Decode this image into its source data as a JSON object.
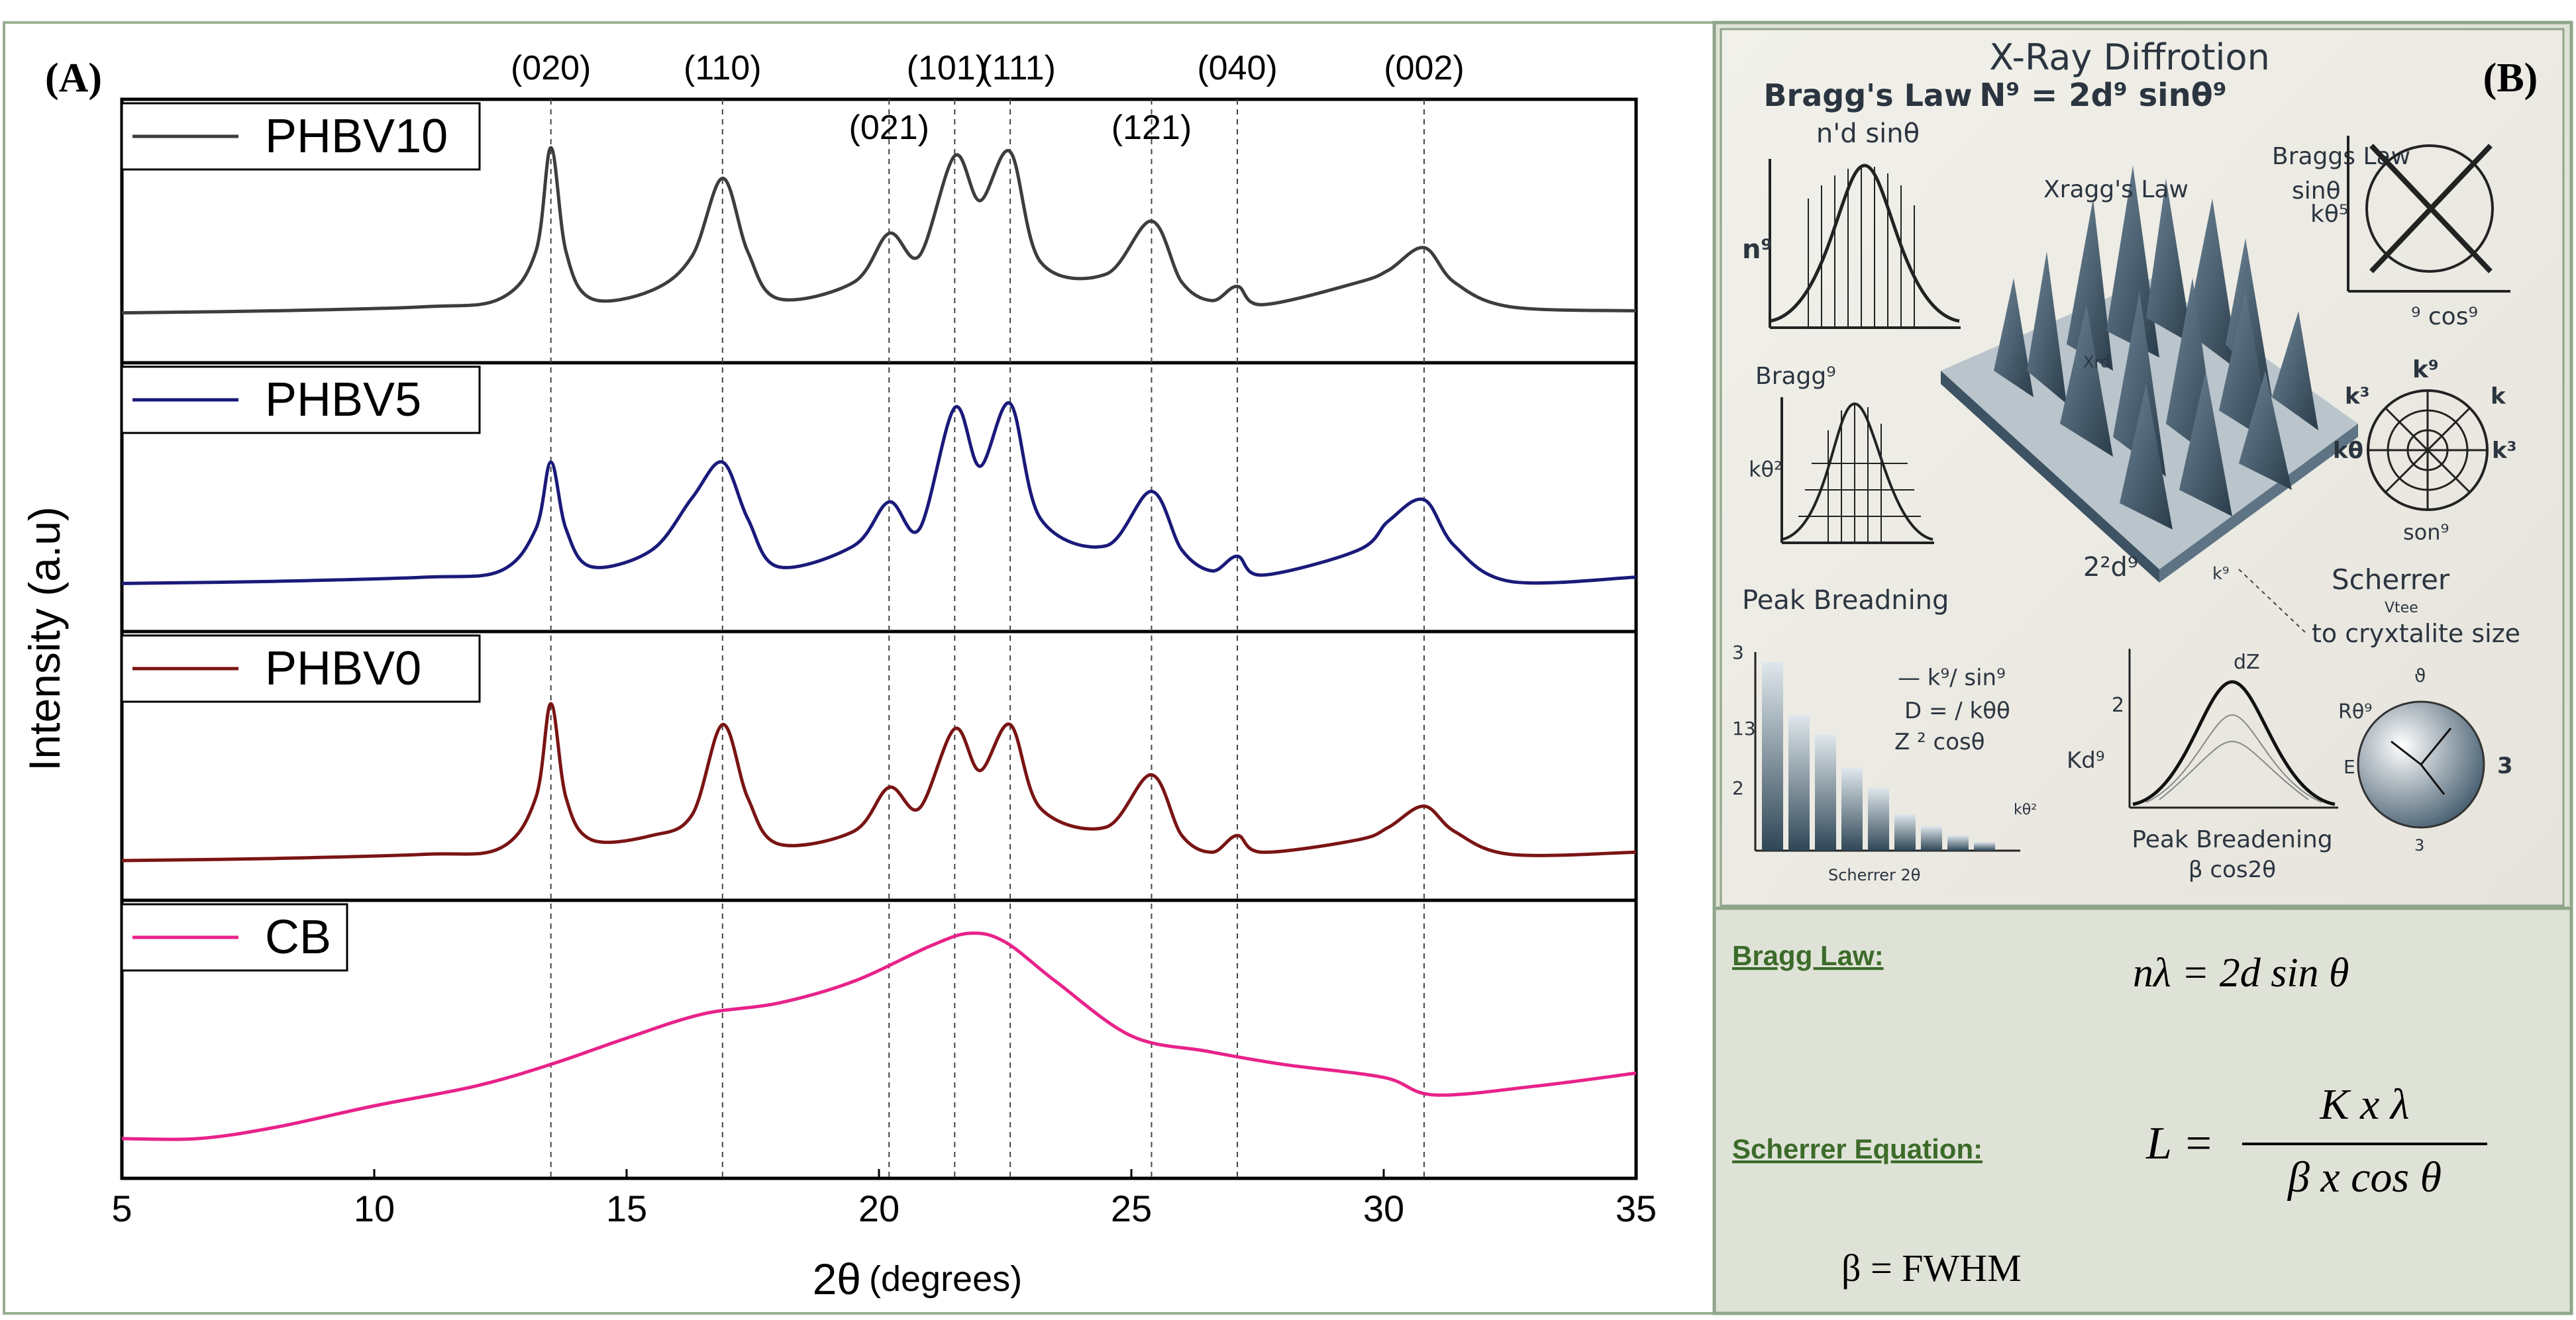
{
  "panel_a_label": "(A)",
  "panel_b_label": "(B)",
  "chart_data": {
    "type": "line",
    "title": "",
    "xlabel_main": "2θ",
    "xlabel_unit": "(degrees)",
    "ylabel": "Intensity (a.u)",
    "xlim": [
      5,
      35
    ],
    "x_ticks": [
      5,
      10,
      15,
      20,
      25,
      30,
      35
    ],
    "peak_labels": [
      {
        "label": "(020)",
        "x": 13.5
      },
      {
        "label": "(110)",
        "x": 16.9
      },
      {
        "label": "(021)",
        "x": 20.2
      },
      {
        "label": "(101)",
        "x": 21.5
      },
      {
        "label": "(111)",
        "x": 22.6
      },
      {
        "label": "(121)",
        "x": 25.4
      },
      {
        "label": "(040)",
        "x": 27.1
      },
      {
        "label": "(002)",
        "x": 30.8
      }
    ],
    "series": [
      {
        "name": "PHBV10",
        "color": "#3d3d3d",
        "baseline": 0.05,
        "points": [
          [
            5,
            0.05
          ],
          [
            8,
            0.06
          ],
          [
            11,
            0.08
          ],
          [
            12.5,
            0.12
          ],
          [
            13.2,
            0.35
          ],
          [
            13.5,
            0.86
          ],
          [
            13.8,
            0.35
          ],
          [
            14.3,
            0.12
          ],
          [
            15.5,
            0.16
          ],
          [
            16.3,
            0.33
          ],
          [
            16.9,
            0.71
          ],
          [
            17.4,
            0.35
          ],
          [
            18,
            0.12
          ],
          [
            19.5,
            0.2
          ],
          [
            20.2,
            0.44
          ],
          [
            20.8,
            0.33
          ],
          [
            21.5,
            0.82
          ],
          [
            22.0,
            0.6
          ],
          [
            22.6,
            0.84
          ],
          [
            23.2,
            0.3
          ],
          [
            24.5,
            0.24
          ],
          [
            25.4,
            0.5
          ],
          [
            26,
            0.2
          ],
          [
            26.6,
            0.11
          ],
          [
            27.1,
            0.18
          ],
          [
            27.6,
            0.09
          ],
          [
            29.5,
            0.2
          ],
          [
            30.1,
            0.26
          ],
          [
            30.8,
            0.37
          ],
          [
            31.4,
            0.2
          ],
          [
            32.5,
            0.08
          ],
          [
            35,
            0.06
          ]
        ]
      },
      {
        "name": "PHBV5",
        "color": "#1a1a7a",
        "baseline": 0.04,
        "points": [
          [
            5,
            0.04
          ],
          [
            8,
            0.05
          ],
          [
            11,
            0.07
          ],
          [
            12.5,
            0.1
          ],
          [
            13.2,
            0.3
          ],
          [
            13.5,
            0.62
          ],
          [
            13.8,
            0.3
          ],
          [
            14.3,
            0.12
          ],
          [
            15.5,
            0.2
          ],
          [
            16.3,
            0.45
          ],
          [
            16.9,
            0.62
          ],
          [
            17.4,
            0.35
          ],
          [
            18,
            0.12
          ],
          [
            19.5,
            0.22
          ],
          [
            20.2,
            0.43
          ],
          [
            20.8,
            0.3
          ],
          [
            21.5,
            0.88
          ],
          [
            22.0,
            0.6
          ],
          [
            22.6,
            0.9
          ],
          [
            23.2,
            0.35
          ],
          [
            24.5,
            0.22
          ],
          [
            25.4,
            0.48
          ],
          [
            26,
            0.2
          ],
          [
            26.6,
            0.1
          ],
          [
            27.1,
            0.17
          ],
          [
            27.6,
            0.08
          ],
          [
            29.5,
            0.2
          ],
          [
            30.1,
            0.34
          ],
          [
            30.8,
            0.44
          ],
          [
            31.4,
            0.22
          ],
          [
            32.5,
            0.05
          ],
          [
            35,
            0.07
          ]
        ]
      },
      {
        "name": "PHBV0",
        "color": "#7a1414",
        "baseline": 0.0,
        "points": [
          [
            5,
            0.0
          ],
          [
            8,
            0.01
          ],
          [
            11,
            0.03
          ],
          [
            12.5,
            0.06
          ],
          [
            13.2,
            0.3
          ],
          [
            13.5,
            0.75
          ],
          [
            13.8,
            0.3
          ],
          [
            14.3,
            0.1
          ],
          [
            15.5,
            0.12
          ],
          [
            16.3,
            0.22
          ],
          [
            16.9,
            0.65
          ],
          [
            17.4,
            0.3
          ],
          [
            18,
            0.08
          ],
          [
            19.5,
            0.14
          ],
          [
            20.2,
            0.35
          ],
          [
            20.8,
            0.25
          ],
          [
            21.5,
            0.63
          ],
          [
            22.0,
            0.43
          ],
          [
            22.6,
            0.65
          ],
          [
            23.2,
            0.25
          ],
          [
            24.5,
            0.16
          ],
          [
            25.4,
            0.41
          ],
          [
            26,
            0.12
          ],
          [
            26.6,
            0.04
          ],
          [
            27.1,
            0.12
          ],
          [
            27.6,
            0.04
          ],
          [
            29.5,
            0.1
          ],
          [
            30.1,
            0.16
          ],
          [
            30.8,
            0.26
          ],
          [
            31.4,
            0.14
          ],
          [
            32.5,
            0.03
          ],
          [
            35,
            0.04
          ]
        ]
      },
      {
        "name": "CB",
        "color": "#e8228a",
        "baseline": 0.0,
        "points": [
          [
            5,
            0.0
          ],
          [
            6.5,
            0.0
          ],
          [
            8,
            0.05
          ],
          [
            10,
            0.15
          ],
          [
            12,
            0.24
          ],
          [
            13.5,
            0.34
          ],
          [
            15,
            0.46
          ],
          [
            16.5,
            0.57
          ],
          [
            18,
            0.62
          ],
          [
            19.5,
            0.72
          ],
          [
            21,
            0.88
          ],
          [
            21.8,
            0.94
          ],
          [
            22.5,
            0.9
          ],
          [
            23.5,
            0.72
          ],
          [
            25,
            0.47
          ],
          [
            26.5,
            0.4
          ],
          [
            28,
            0.34
          ],
          [
            30,
            0.28
          ],
          [
            31,
            0.2
          ],
          [
            33,
            0.24
          ],
          [
            35,
            0.3
          ]
        ]
      }
    ]
  },
  "panel_b": {
    "illustration": {
      "title_line1": "X-Ray Diffrotion",
      "title_line2": "N⁹ = 2d⁹ sinθ⁹",
      "braggs_law_heading": "Bragg's Law",
      "braggs_law_formula": "n'd  sinθ",
      "n_label": "n⁹",
      "xraggs_law": "Xragg's Law",
      "braggs_law_right": "Braggs Law",
      "sin_right": "sinθ",
      "k_label_top": "kθ⁵",
      "cos_label": "⁹ cos⁹",
      "bragg_small": "Bragg⁹",
      "k_label_mid": "kθ²",
      "xrd_label": "Xrd",
      "two_d": "2²d⁹",
      "peak_breadning": "Peak Breadning",
      "k_label_bottom_mid": "k⁹",
      "scherrer_right": "Scherrer",
      "vtee": "Vtee",
      "crystallite": "to cryxtalite size",
      "polar_top": "k⁹",
      "polar_left": "k³",
      "polar_right": "k",
      "polar_left2": "kθ",
      "polar_right2": "k³",
      "polar_bottom": "son⁹",
      "bar_y3": "3",
      "bar_y13": "13",
      "bar_y2": "2",
      "k_over_sin": "— k⁹/ sin⁹",
      "d_eq": "D = / kθθ",
      "z_cos": "Z ² cosθ",
      "k_small_bar": "kθ²",
      "scherrer_2theta": "Scherrer 2θ",
      "d_zero": "dZ",
      "peak_y2": "2",
      "kd_label": "Kd⁹",
      "peak_breadening": "Peak Breadening",
      "beta_cos": "β cos2θ",
      "sphere_top": "ϑ",
      "sphere_left": "Rθ⁹",
      "sphere_e": "E",
      "sphere_3": "3",
      "sphere_bottom": "3"
    },
    "bragg_label": "Bragg Law:",
    "bragg_formula": "nλ  = 2d sin θ",
    "scherrer_label": "Scherrer Equation:",
    "scherrer_L": "L =",
    "scherrer_numerator": "K  x  λ",
    "scherrer_denominator": "β  x  cos θ",
    "beta_def": "β =  FWHM"
  },
  "colors": {
    "panel_b_bg": "#dfe3d7",
    "panel_b_border": "#8fa58a",
    "green_text": "#3d6b2a"
  }
}
